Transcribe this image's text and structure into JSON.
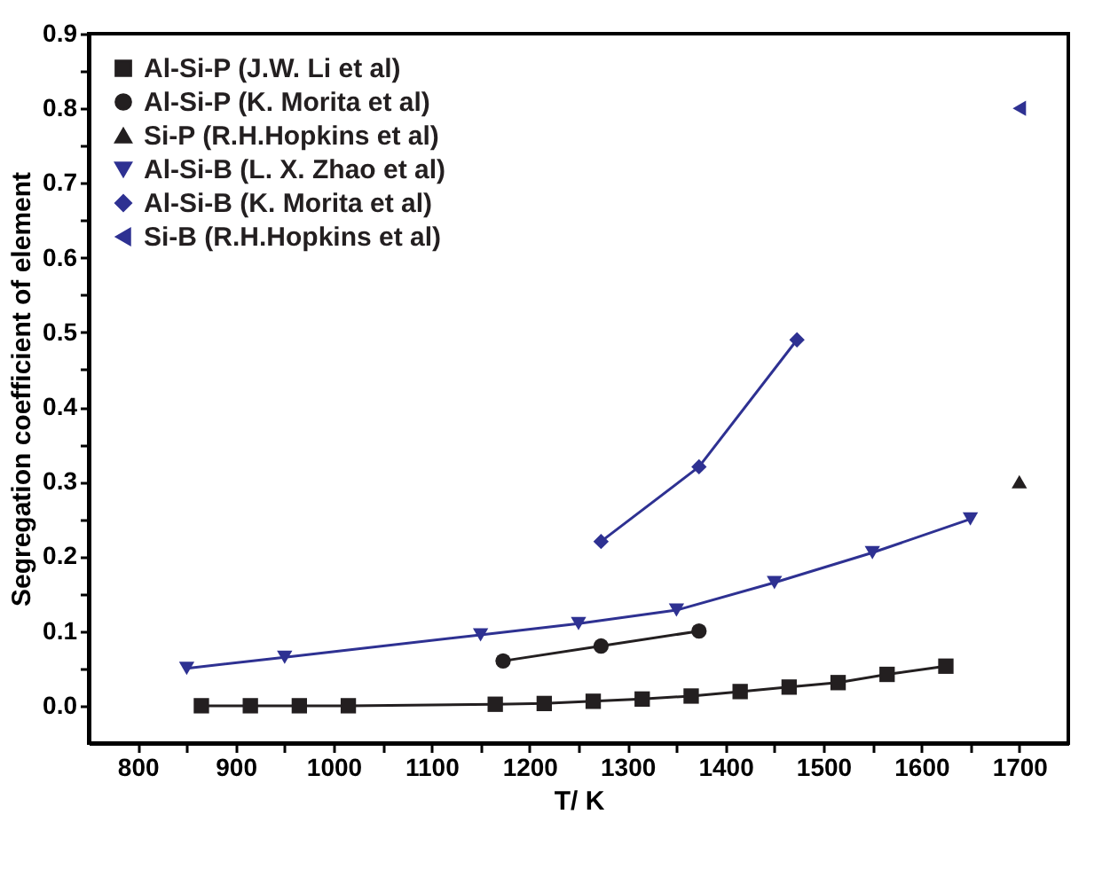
{
  "chart_data": {
    "type": "line",
    "xlabel": "T/ K",
    "ylabel": "Segregation coefficient of element",
    "xlim": [
      750,
      1750
    ],
    "xticks": [
      800,
      {
        "value": 850,
        "label": null
      },
      900,
      {
        "value": 950,
        "label": null
      },
      1000,
      {
        "value": 1050,
        "label": null
      },
      1100,
      {
        "value": 1150,
        "label": null
      },
      1200,
      {
        "value": 1250,
        "label": null
      },
      1300,
      {
        "value": 1350,
        "label": null
      },
      1400,
      {
        "value": 1450,
        "label": null
      },
      1500,
      {
        "value": 1550,
        "label": null
      },
      1600,
      {
        "value": 1650,
        "label": null
      },
      1700
    ],
    "ylim": [
      -0.05,
      0.9
    ],
    "yticks": [
      {
        "value": 0,
        "label": "0.0"
      },
      {
        "value": 0.05,
        "label": null
      },
      {
        "value": 0.1,
        "label": "0.1"
      },
      {
        "value": 0.15,
        "label": null
      },
      {
        "value": 0.2,
        "label": "0.2"
      },
      {
        "value": 0.25,
        "label": null
      },
      {
        "value": 0.3,
        "label": "0.3"
      },
      {
        "value": 0.35,
        "label": null
      },
      {
        "value": 0.4,
        "label": "0.4"
      },
      {
        "value": 0.45,
        "label": null
      },
      {
        "value": 0.5,
        "label": "0.5"
      },
      {
        "value": 0.55,
        "label": null
      },
      {
        "value": 0.6,
        "label": "0.6"
      },
      {
        "value": 0.65,
        "label": null
      },
      {
        "value": 0.7,
        "label": "0.7"
      },
      {
        "value": 0.75,
        "label": null
      },
      {
        "value": 0.8,
        "label": "0.8"
      },
      {
        "value": 0.85,
        "label": null
      },
      {
        "value": 0.9,
        "label": "0.9"
      }
    ],
    "grid": false,
    "legend": "top left",
    "series": [
      {
        "name": "Al-Si-P (J.W. Li et al)",
        "color": "#231f20",
        "marker": "square",
        "x": [
          865,
          915,
          965,
          1015,
          1165,
          1215,
          1265,
          1315,
          1365,
          1415,
          1465,
          1515,
          1565,
          1625
        ],
        "values": [
          0,
          0,
          0,
          0,
          0.002,
          0.003,
          0.006,
          0.009,
          0.013,
          0.019,
          0.025,
          0.031,
          0.042,
          0.053
        ]
      },
      {
        "name": "Al-Si-P (K. Morita et al)",
        "color": "#231f20",
        "marker": "circle",
        "x": [
          1173,
          1273,
          1373
        ],
        "values": [
          0.06,
          0.08,
          0.1
        ]
      },
      {
        "name": "Si-P (R.H.Hopkins et al)",
        "color": "#231f20",
        "marker": "triangle",
        "x": [
          1700
        ],
        "values": [
          0.3
        ]
      },
      {
        "name": "Al-Si-B (L. X. Zhao et al)",
        "color": "#2e3192",
        "marker": "triangle-down",
        "x": [
          850,
          950,
          1150,
          1250,
          1350,
          1450,
          1550,
          1650
        ],
        "values": [
          0.05,
          0.065,
          0.095,
          0.11,
          0.128,
          0.165,
          0.205,
          0.25
        ]
      },
      {
        "name": "Al-Si-B (K. Morita et al)",
        "color": "#2e3192",
        "marker": "diamond",
        "x": [
          1273,
          1373,
          1473
        ],
        "values": [
          0.22,
          0.32,
          0.49
        ]
      },
      {
        "name": "Si-B (R.H.Hopkins et al)",
        "color": "#2e3192",
        "marker": "triangle-left",
        "x": [
          1700
        ],
        "values": [
          0.8
        ]
      }
    ]
  }
}
